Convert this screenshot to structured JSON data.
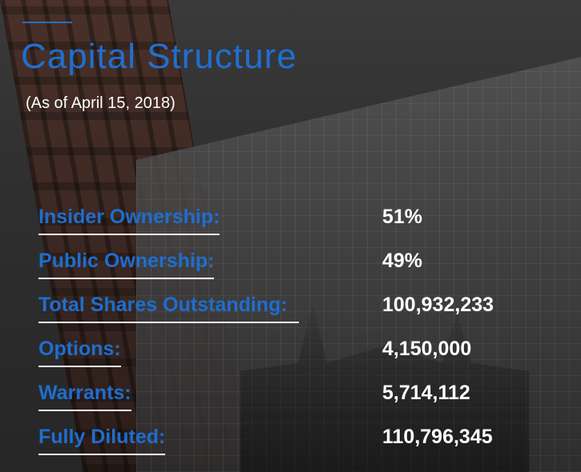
{
  "title": "Capital Structure",
  "subtitle": "(As of April 15, 2018)",
  "rows": [
    {
      "label": "Insider Ownership:",
      "value": "51%"
    },
    {
      "label": "Public Ownership:",
      "value": "49%"
    },
    {
      "label": "Total Shares Outstanding:",
      "value": "100,932,233"
    },
    {
      "label": "Options:",
      "value": "4,150,000"
    },
    {
      "label": "Warrants:",
      "value": "5,714,112"
    },
    {
      "label": "Fully Diluted:",
      "value": "110,796,345"
    }
  ],
  "colors": {
    "accent": "#1f6fd1",
    "text": "#ffffff"
  }
}
